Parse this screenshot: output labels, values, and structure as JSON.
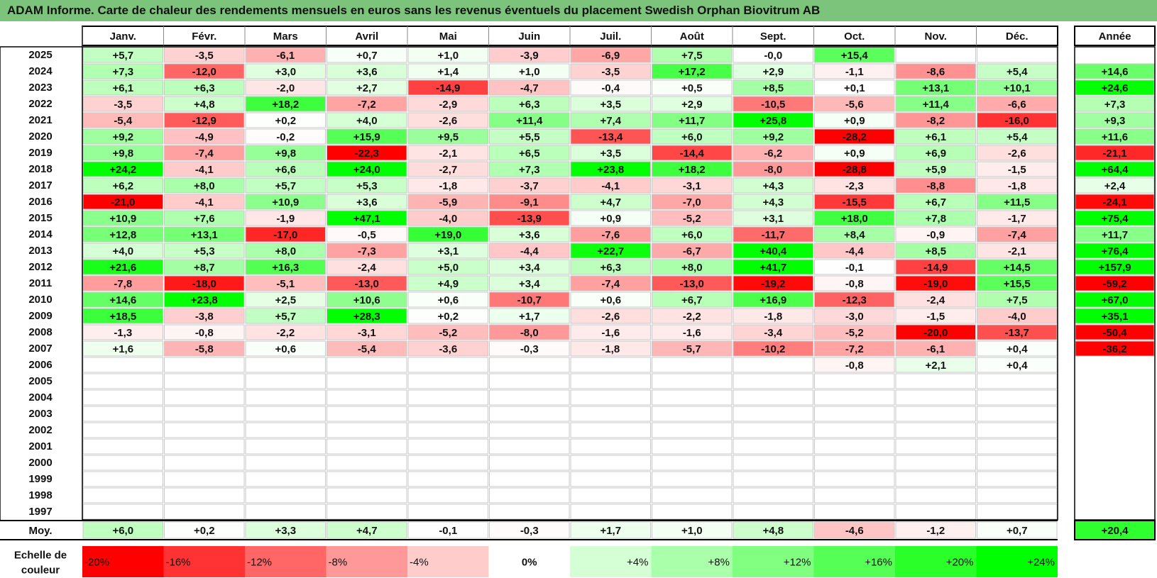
{
  "title": "ADAM Informe. Carte de chaleur des rendements mensuels en euros sans les revenus éventuels du placement Swedish Orphan Biovitrum AB",
  "colors": {
    "header_bg": "#7cc47c",
    "negative_max": "#ff0000",
    "positive_max": "#00ff00",
    "neutral": "#ffffff"
  },
  "chart_data": {
    "type": "heatmap",
    "title": "ADAM Informe. Carte de chaleur des rendements mensuels en euros sans les revenus éventuels du placement Swedish Orphan Biovitrum AB",
    "columns": [
      "Janv.",
      "Févr.",
      "Mars",
      "Avril",
      "Mai",
      "Juin",
      "Juil.",
      "Août",
      "Sept.",
      "Oct.",
      "Nov.",
      "Déc."
    ],
    "annual_label": "Année",
    "rows": [
      {
        "year": "2025",
        "values": [
          "+5,7",
          "-3,5",
          "-6,1",
          "+0,7",
          "+1,0",
          "-3,9",
          "-6,9",
          "+7,5",
          "-0,0",
          "+15,4",
          "",
          ""
        ],
        "annual": ""
      },
      {
        "year": "2024",
        "values": [
          "+7,3",
          "-12,0",
          "+3,0",
          "+3,6",
          "+1,4",
          "+1,0",
          "-3,5",
          "+17,2",
          "+2,9",
          "-1,1",
          "-8,6",
          "+5,4"
        ],
        "annual": "+14,6"
      },
      {
        "year": "2023",
        "values": [
          "+6,1",
          "+6,3",
          "-2,0",
          "+2,7",
          "-14,9",
          "-4,7",
          "-0,4",
          "+0,5",
          "+8,5",
          "+0,1",
          "+13,1",
          "+10,1"
        ],
        "annual": "+24,6"
      },
      {
        "year": "2022",
        "values": [
          "-3,5",
          "+4,8",
          "+18,2",
          "-7,2",
          "-2,9",
          "+6,3",
          "+3,5",
          "+2,9",
          "-10,5",
          "-5,6",
          "+11,4",
          "-6,6"
        ],
        "annual": "+7,3"
      },
      {
        "year": "2021",
        "values": [
          "-5,4",
          "-12,9",
          "+0,2",
          "+4,0",
          "-2,6",
          "+11,4",
          "+7,4",
          "+11,7",
          "+25,8",
          "+0,9",
          "-8,2",
          "-16,0"
        ],
        "annual": "+9,3"
      },
      {
        "year": "2020",
        "values": [
          "+9,2",
          "-4,9",
          "-0,2",
          "+15,9",
          "+9,5",
          "+5,5",
          "-13,4",
          "+6,0",
          "+9,2",
          "-28,2",
          "+6,1",
          "+5,4"
        ],
        "annual": "+11,6"
      },
      {
        "year": "2019",
        "values": [
          "+9,8",
          "-7,4",
          "+9,8",
          "-22,3",
          "-2,1",
          "+6,5",
          "+3,5",
          "-14,4",
          "-6,2",
          "+0,9",
          "+6,9",
          "-2,6"
        ],
        "annual": "-21,1"
      },
      {
        "year": "2018",
        "values": [
          "+24,2",
          "-4,1",
          "+6,6",
          "+24,0",
          "-2,7",
          "+7,3",
          "+23,8",
          "+18,2",
          "-8,0",
          "-28,8",
          "+5,9",
          "-1,5"
        ],
        "annual": "+64,4"
      },
      {
        "year": "2017",
        "values": [
          "+6,2",
          "+8,0",
          "+5,7",
          "+5,3",
          "-1,8",
          "-3,7",
          "-4,1",
          "-3,1",
          "+4,3",
          "-2,3",
          "-8,8",
          "-1,8"
        ],
        "annual": "+2,4"
      },
      {
        "year": "2016",
        "values": [
          "-21,0",
          "-4,1",
          "+10,9",
          "+3,6",
          "-5,9",
          "-9,1",
          "+4,7",
          "-7,0",
          "+4,3",
          "-15,5",
          "+6,7",
          "+11,5"
        ],
        "annual": "-24,1"
      },
      {
        "year": "2015",
        "values": [
          "+10,9",
          "+7,6",
          "-1,9",
          "+47,1",
          "-4,0",
          "-13,9",
          "+0,9",
          "-5,2",
          "+3,1",
          "+18,0",
          "+7,8",
          "-1,7"
        ],
        "annual": "+75,4"
      },
      {
        "year": "2014",
        "values": [
          "+12,8",
          "+13,1",
          "-17,0",
          "-0,5",
          "+19,0",
          "+3,6",
          "-7,6",
          "+6,0",
          "-11,7",
          "+8,4",
          "-0,9",
          "-7,4"
        ],
        "annual": "+11,7"
      },
      {
        "year": "2013",
        "values": [
          "+4,0",
          "+5,3",
          "+8,0",
          "-7,3",
          "+3,1",
          "-4,4",
          "+22,7",
          "-6,7",
          "+40,4",
          "-4,4",
          "+8,5",
          "-2,1"
        ],
        "annual": "+76,4"
      },
      {
        "year": "2012",
        "values": [
          "+21,6",
          "+8,7",
          "+16,3",
          "-2,4",
          "+5,0",
          "+3,4",
          "+6,3",
          "+8,0",
          "+41,7",
          "-0,1",
          "-14,9",
          "+14,5"
        ],
        "annual": "+157,9"
      },
      {
        "year": "2011",
        "values": [
          "-7,8",
          "-18,0",
          "-5,1",
          "-13,0",
          "+4,9",
          "+3,4",
          "-7,4",
          "-13,0",
          "-19,2",
          "-0,8",
          "-19,0",
          "+15,5"
        ],
        "annual": "-59,2"
      },
      {
        "year": "2010",
        "values": [
          "+14,6",
          "+23,8",
          "+2,5",
          "+10,6",
          "+0,6",
          "-10,7",
          "+0,6",
          "+6,7",
          "+16,9",
          "-12,3",
          "-2,4",
          "+7,5"
        ],
        "annual": "+67,0"
      },
      {
        "year": "2009",
        "values": [
          "+18,5",
          "-3,8",
          "+5,7",
          "+28,3",
          "+0,2",
          "+1,7",
          "-2,6",
          "-2,2",
          "-1,8",
          "-3,0",
          "-1,5",
          "-4,0"
        ],
        "annual": "+35,1"
      },
      {
        "year": "2008",
        "values": [
          "-1,3",
          "-0,8",
          "-2,2",
          "-3,1",
          "-5,2",
          "-8,0",
          "-1,6",
          "-1,6",
          "-3,4",
          "-5,2",
          "-20,0",
          "-13,7"
        ],
        "annual": "-50,4"
      },
      {
        "year": "2007",
        "values": [
          "+1,6",
          "-5,8",
          "+0,6",
          "-5,4",
          "-3,6",
          "-0,3",
          "-1,8",
          "-5,7",
          "-10,2",
          "-7,2",
          "-6,1",
          "+0,4"
        ],
        "annual": "-36,2"
      },
      {
        "year": "2006",
        "values": [
          "",
          "",
          "",
          "",
          "",
          "",
          "",
          "",
          "",
          "-0,8",
          "+2,1",
          "+0,4"
        ],
        "annual": ""
      },
      {
        "year": "2005",
        "values": [
          "",
          "",
          "",
          "",
          "",
          "",
          "",
          "",
          "",
          "",
          "",
          ""
        ],
        "annual": ""
      },
      {
        "year": "2004",
        "values": [
          "",
          "",
          "",
          "",
          "",
          "",
          "",
          "",
          "",
          "",
          "",
          ""
        ],
        "annual": ""
      },
      {
        "year": "2003",
        "values": [
          "",
          "",
          "",
          "",
          "",
          "",
          "",
          "",
          "",
          "",
          "",
          ""
        ],
        "annual": ""
      },
      {
        "year": "2002",
        "values": [
          "",
          "",
          "",
          "",
          "",
          "",
          "",
          "",
          "",
          "",
          "",
          ""
        ],
        "annual": ""
      },
      {
        "year": "2001",
        "values": [
          "",
          "",
          "",
          "",
          "",
          "",
          "",
          "",
          "",
          "",
          "",
          ""
        ],
        "annual": ""
      },
      {
        "year": "2000",
        "values": [
          "",
          "",
          "",
          "",
          "",
          "",
          "",
          "",
          "",
          "",
          "",
          ""
        ],
        "annual": ""
      },
      {
        "year": "1999",
        "values": [
          "",
          "",
          "",
          "",
          "",
          "",
          "",
          "",
          "",
          "",
          "",
          ""
        ],
        "annual": ""
      },
      {
        "year": "1998",
        "values": [
          "",
          "",
          "",
          "",
          "",
          "",
          "",
          "",
          "",
          "",
          "",
          ""
        ],
        "annual": ""
      },
      {
        "year": "1997",
        "values": [
          "",
          "",
          "",
          "",
          "",
          "",
          "",
          "",
          "",
          "",
          "",
          ""
        ],
        "annual": ""
      }
    ],
    "average": {
      "label": "Moy.",
      "values": [
        "+6,0",
        "+0,2",
        "+3,3",
        "+4,7",
        "-0,1",
        "-0,3",
        "+1,7",
        "+1,0",
        "+4,8",
        "-4,6",
        "-1,2",
        "+0,7"
      ],
      "annual": "+20,4"
    },
    "scale": {
      "label_lines": [
        "Echelle de",
        "couleur"
      ],
      "entries": [
        {
          "label": "-20%",
          "value": -20
        },
        {
          "label": "-16%",
          "value": -16
        },
        {
          "label": "-12%",
          "value": -12
        },
        {
          "label": "-8%",
          "value": -8
        },
        {
          "label": "-4%",
          "value": -4
        },
        {
          "label": "0%",
          "value": 0
        },
        {
          "label": "+4%",
          "value": 4
        },
        {
          "label": "+8%",
          "value": 8
        },
        {
          "label": "+12%",
          "value": 12
        },
        {
          "label": "+16%",
          "value": 16
        },
        {
          "label": "+20%",
          "value": 20
        },
        {
          "label": "+24%",
          "value": 24
        }
      ],
      "range": [
        -20,
        24
      ]
    }
  }
}
